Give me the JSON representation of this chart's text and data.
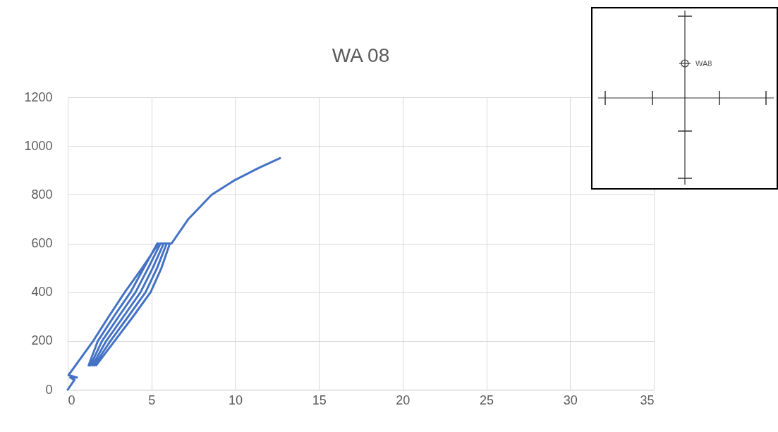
{
  "chart_data": {
    "type": "line",
    "title": "WA 08",
    "xlim": [
      0,
      35
    ],
    "xticks": [
      0,
      5,
      10,
      15,
      20,
      25,
      30,
      35
    ],
    "ylim": [
      0,
      1200
    ],
    "yticks": [
      0,
      200,
      400,
      600,
      800,
      1000,
      1200
    ],
    "grid": true,
    "annotations": [
      "WA8"
    ],
    "series": [
      {
        "color": "#4472c4",
        "x": [
          0,
          0.4,
          0.15,
          0.55,
          0.05,
          1.52,
          2.45,
          3.41,
          4.45,
          5.43,
          5.35,
          4.55,
          3.75,
          2.75,
          1.8,
          1.25,
          1.36,
          2.05,
          3.04,
          4.05,
          4.81,
          5.54,
          5.73,
          5.08,
          4.35,
          3.33,
          2.3,
          1.48,
          1.48,
          2.3,
          3.33,
          4.35,
          5.08,
          5.73,
          5.91,
          5.34,
          4.65,
          3.61,
          2.55,
          1.59,
          1.59,
          2.55,
          3.61,
          4.65,
          5.34,
          5.91,
          6.1,
          5.6,
          4.95,
          3.9,
          2.8,
          1.7,
          1.7,
          2.8,
          3.9,
          4.95,
          5.6,
          6.1,
          6.2,
          7.2,
          8.6,
          9.98,
          11.4,
          12.68
        ],
        "values": [
          0,
          40,
          50,
          50,
          60,
          200,
          300,
          400,
          500,
          600,
          600,
          500,
          400,
          300,
          200,
          100,
          100,
          200,
          300,
          400,
          500,
          600,
          600,
          500,
          400,
          300,
          200,
          100,
          100,
          200,
          300,
          400,
          500,
          600,
          600,
          500,
          400,
          300,
          200,
          100,
          100,
          200,
          300,
          400,
          500,
          600,
          600,
          500,
          400,
          300,
          200,
          100,
          100,
          200,
          300,
          400,
          500,
          600,
          600,
          700,
          800,
          860,
          910,
          950
        ]
      }
    ]
  }
}
